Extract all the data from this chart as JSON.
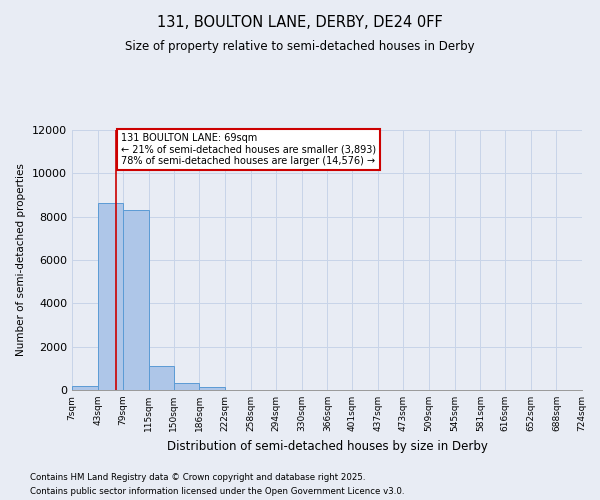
{
  "title": "131, BOULTON LANE, DERBY, DE24 0FF",
  "subtitle": "Size of property relative to semi-detached houses in Derby",
  "xlabel": "Distribution of semi-detached houses by size in Derby",
  "ylabel": "Number of semi-detached properties",
  "footnote1": "Contains HM Land Registry data © Crown copyright and database right 2025.",
  "footnote2": "Contains public sector information licensed under the Open Government Licence v3.0.",
  "property_size": 69,
  "annotation_label": "131 BOULTON LANE: 69sqm",
  "annotation_line1": "← 21% of semi-detached houses are smaller (3,893)",
  "annotation_line2": "78% of semi-detached houses are larger (14,576) →",
  "bar_left_edges": [
    7,
    43,
    79,
    115,
    150,
    186,
    222,
    258,
    294,
    330,
    366,
    401,
    437,
    473,
    509,
    545,
    581,
    616,
    652,
    688
  ],
  "bar_widths": [
    36,
    36,
    36,
    35,
    36,
    36,
    36,
    36,
    36,
    36,
    35,
    36,
    36,
    36,
    36,
    36,
    35,
    36,
    36,
    36
  ],
  "bar_heights": [
    200,
    8650,
    8300,
    1100,
    340,
    120,
    0,
    0,
    0,
    0,
    0,
    0,
    0,
    0,
    0,
    0,
    0,
    0,
    0,
    0
  ],
  "bar_color": "#aec6e8",
  "bar_edge_color": "#5b9bd5",
  "grid_color": "#c8d4e8",
  "annotation_box_color": "#ffffff",
  "annotation_box_edge": "#cc0000",
  "vline_color": "#cc0000",
  "tick_labels": [
    "7sqm",
    "43sqm",
    "79sqm",
    "115sqm",
    "150sqm",
    "186sqm",
    "222sqm",
    "258sqm",
    "294sqm",
    "330sqm",
    "366sqm",
    "401sqm",
    "437sqm",
    "473sqm",
    "509sqm",
    "545sqm",
    "581sqm",
    "616sqm",
    "652sqm",
    "688sqm",
    "724sqm"
  ],
  "ylim": [
    0,
    12000
  ],
  "yticks": [
    0,
    2000,
    4000,
    6000,
    8000,
    10000,
    12000
  ],
  "bg_color": "#e8ecf4",
  "plot_bg_color": "#e8ecf4"
}
